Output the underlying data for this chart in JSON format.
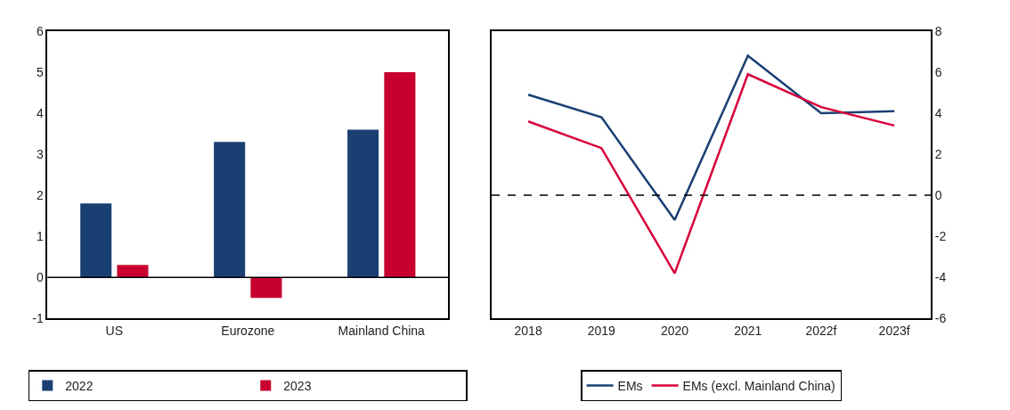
{
  "chart_data": [
    {
      "type": "bar",
      "categories": [
        "US",
        "Eurozone",
        "Mainland China"
      ],
      "series": [
        {
          "name": "2022",
          "color": "#1a3f73",
          "values": [
            1.8,
            3.3,
            3.6
          ]
        },
        {
          "name": "2023",
          "color": "#c8002f",
          "values": [
            0.3,
            -0.5,
            5.0
          ]
        }
      ],
      "ylim": [
        -1,
        6
      ],
      "yticks": [
        -1,
        0,
        1,
        2,
        3,
        4,
        5,
        6
      ],
      "legend": "bottom",
      "ref_lines": [
        {
          "axis": "y",
          "value": 0,
          "line_style": "solid",
          "color": "#000000"
        }
      ]
    },
    {
      "type": "line",
      "categories": [
        "2018",
        "2019",
        "2020",
        "2021",
        "2022f",
        "2023f"
      ],
      "series": [
        {
          "name": "EMs",
          "color": "#1a3f73",
          "values": [
            4.9,
            3.8,
            -1.2,
            6.8,
            4.0,
            4.1
          ]
        },
        {
          "name": "EMs (excl. Mainland China)",
          "color": "#d6003a",
          "values": [
            3.6,
            2.3,
            -3.8,
            5.9,
            4.3,
            3.4
          ]
        }
      ],
      "ylim": [
        -6,
        8
      ],
      "yticks": [
        -6,
        -4,
        -2,
        0,
        2,
        4,
        6,
        8
      ],
      "legend": "bottom",
      "marker": "none",
      "line_style": "solid",
      "ref_lines": [
        {
          "axis": "y",
          "value": 0,
          "line_style": "dashed",
          "color": "#000000"
        }
      ]
    }
  ]
}
